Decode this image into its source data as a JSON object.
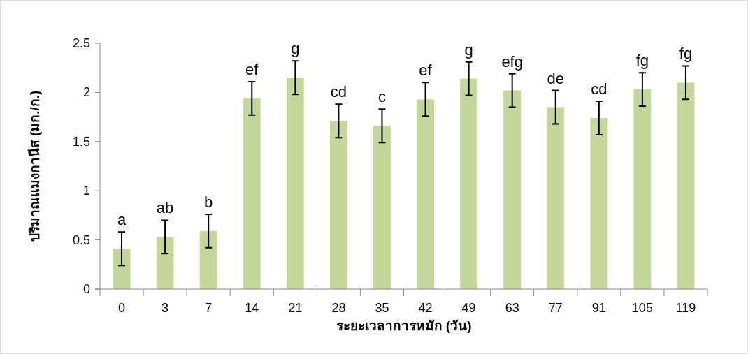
{
  "chart_data": {
    "type": "bar",
    "xlabel": "ระยะเวลาการหมัก (วัน)",
    "ylabel": "ปริมาณแมงกานีส (มก./ก.)",
    "categories": [
      "0",
      "3",
      "7",
      "14",
      "21",
      "28",
      "35",
      "42",
      "49",
      "63",
      "77",
      "91",
      "105",
      "119"
    ],
    "values": [
      0.41,
      0.53,
      0.59,
      1.94,
      2.15,
      1.71,
      1.66,
      1.93,
      2.14,
      2.02,
      1.85,
      1.74,
      2.03,
      2.1
    ],
    "errors": [
      0.17,
      0.17,
      0.17,
      0.17,
      0.17,
      0.17,
      0.17,
      0.17,
      0.17,
      0.17,
      0.17,
      0.17,
      0.17,
      0.17
    ],
    "color": "#c4d79b",
    "ylim": [
      0,
      2.5
    ],
    "yticks": [
      0,
      0.5,
      1,
      1.5,
      2,
      2.5
    ],
    "annotations": [
      {
        "text": "a",
        "x": "0",
        "y": 0.58
      },
      {
        "text": "ab",
        "x": "3",
        "y": 0.7
      },
      {
        "text": "b",
        "x": "7",
        "y": 0.76
      },
      {
        "text": "ef",
        "x": "14",
        "y": 2.11
      },
      {
        "text": "g",
        "x": "21",
        "y": 2.32
      },
      {
        "text": "cd",
        "x": "28",
        "y": 1.88
      },
      {
        "text": "c",
        "x": "35",
        "y": 1.83
      },
      {
        "text": "ef",
        "x": "42",
        "y": 2.1
      },
      {
        "text": "g",
        "x": "49",
        "y": 2.31
      },
      {
        "text": "efg",
        "x": "63",
        "y": 2.19
      },
      {
        "text": "de",
        "x": "77",
        "y": 2.02
      },
      {
        "text": "cd",
        "x": "91",
        "y": 1.91
      },
      {
        "text": "fg",
        "x": "105",
        "y": 2.2
      },
      {
        "text": "fg",
        "x": "119",
        "y": 2.27
      }
    ]
  }
}
